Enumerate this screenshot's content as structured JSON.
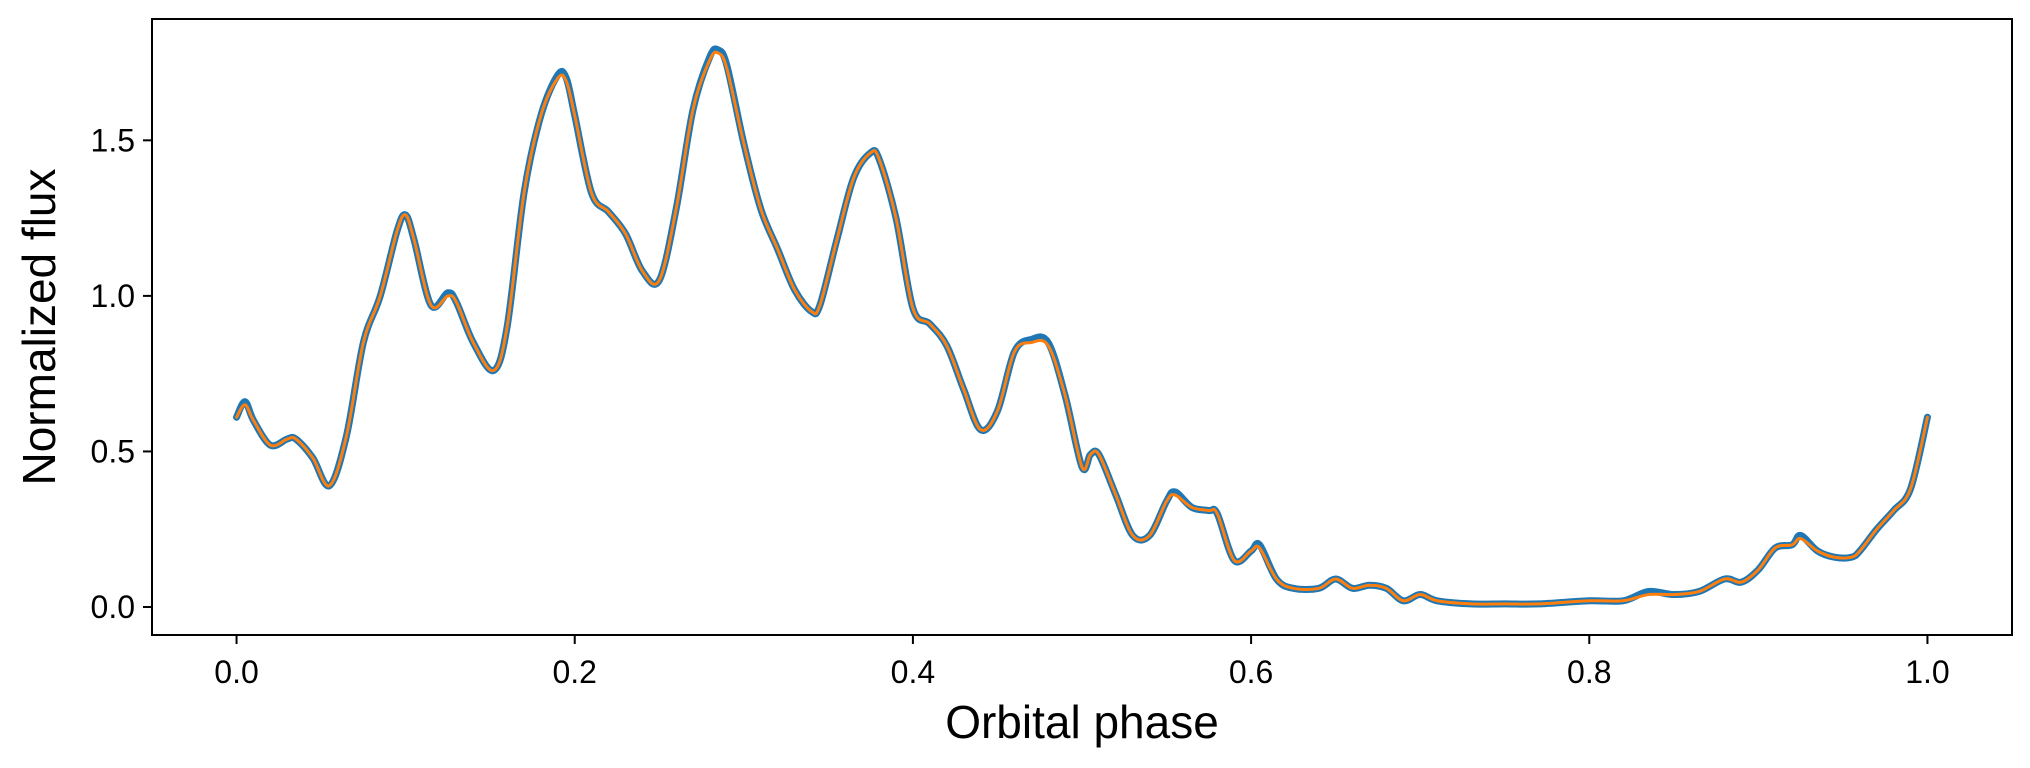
{
  "chart_data": {
    "type": "line",
    "title": "",
    "xlabel": "Orbital phase",
    "ylabel": "Normalized flux",
    "xlim": [
      -0.05,
      1.05
    ],
    "ylim": [
      -0.09,
      1.89
    ],
    "xticks": [
      0.0,
      0.2,
      0.4,
      0.6,
      0.8,
      1.0
    ],
    "xtick_labels": [
      "0.0",
      "0.2",
      "0.4",
      "0.6",
      "0.8",
      "1.0"
    ],
    "yticks": [
      0.0,
      0.5,
      1.0,
      1.5
    ],
    "ytick_labels": [
      "0.0",
      "0.5",
      "1.0",
      "1.5"
    ],
    "grid": false,
    "legend": "none",
    "series": [
      {
        "color": "#1f77b4",
        "role": "observed",
        "x": [
          0.0,
          0.005,
          0.01,
          0.02,
          0.03,
          0.035,
          0.045,
          0.055,
          0.065,
          0.075,
          0.085,
          0.095,
          0.1,
          0.105,
          0.115,
          0.125,
          0.13,
          0.14,
          0.152,
          0.16,
          0.17,
          0.18,
          0.19,
          0.195,
          0.2,
          0.21,
          0.22,
          0.23,
          0.24,
          0.25,
          0.26,
          0.27,
          0.28,
          0.285,
          0.29,
          0.3,
          0.31,
          0.32,
          0.33,
          0.34,
          0.345,
          0.355,
          0.365,
          0.375,
          0.38,
          0.39,
          0.4,
          0.41,
          0.42,
          0.43,
          0.44,
          0.45,
          0.46,
          0.47,
          0.48,
          0.49,
          0.5,
          0.505,
          0.51,
          0.52,
          0.53,
          0.54,
          0.55,
          0.555,
          0.565,
          0.575,
          0.58,
          0.59,
          0.6,
          0.605,
          0.615,
          0.625,
          0.64,
          0.65,
          0.66,
          0.67,
          0.68,
          0.69,
          0.7,
          0.71,
          0.73,
          0.75,
          0.77,
          0.8,
          0.82,
          0.835,
          0.85,
          0.865,
          0.88,
          0.89,
          0.9,
          0.91,
          0.92,
          0.925,
          0.935,
          0.945,
          0.955,
          0.96,
          0.97,
          0.98,
          0.99,
          1.0
        ],
        "y": [
          0.61,
          0.66,
          0.6,
          0.52,
          0.54,
          0.54,
          0.48,
          0.39,
          0.55,
          0.85,
          1.0,
          1.21,
          1.26,
          1.18,
          0.97,
          1.01,
          0.98,
          0.85,
          0.76,
          0.9,
          1.33,
          1.58,
          1.71,
          1.7,
          1.58,
          1.33,
          1.27,
          1.2,
          1.08,
          1.05,
          1.28,
          1.6,
          1.77,
          1.79,
          1.74,
          1.49,
          1.28,
          1.15,
          1.02,
          0.95,
          0.97,
          1.18,
          1.38,
          1.46,
          1.44,
          1.25,
          0.96,
          0.91,
          0.84,
          0.7,
          0.57,
          0.63,
          0.82,
          0.86,
          0.85,
          0.68,
          0.45,
          0.49,
          0.49,
          0.36,
          0.23,
          0.23,
          0.34,
          0.37,
          0.32,
          0.31,
          0.3,
          0.15,
          0.18,
          0.2,
          0.09,
          0.06,
          0.06,
          0.09,
          0.06,
          0.07,
          0.06,
          0.02,
          0.04,
          0.02,
          0.01,
          0.01,
          0.01,
          0.02,
          0.02,
          0.05,
          0.04,
          0.05,
          0.09,
          0.08,
          0.12,
          0.19,
          0.2,
          0.23,
          0.18,
          0.16,
          0.16,
          0.18,
          0.25,
          0.31,
          0.38,
          0.61
        ]
      },
      {
        "color": "#ff7f0e",
        "role": "model",
        "x": [
          0.0,
          0.005,
          0.01,
          0.02,
          0.03,
          0.035,
          0.045,
          0.055,
          0.065,
          0.075,
          0.085,
          0.095,
          0.1,
          0.105,
          0.115,
          0.125,
          0.13,
          0.14,
          0.152,
          0.16,
          0.17,
          0.18,
          0.19,
          0.195,
          0.2,
          0.21,
          0.22,
          0.23,
          0.24,
          0.25,
          0.26,
          0.27,
          0.28,
          0.285,
          0.29,
          0.3,
          0.31,
          0.32,
          0.33,
          0.34,
          0.345,
          0.355,
          0.365,
          0.375,
          0.38,
          0.39,
          0.4,
          0.41,
          0.42,
          0.43,
          0.44,
          0.45,
          0.46,
          0.47,
          0.48,
          0.49,
          0.5,
          0.505,
          0.51,
          0.52,
          0.53,
          0.54,
          0.55,
          0.555,
          0.565,
          0.575,
          0.58,
          0.59,
          0.6,
          0.605,
          0.615,
          0.625,
          0.64,
          0.65,
          0.66,
          0.67,
          0.68,
          0.69,
          0.7,
          0.71,
          0.73,
          0.75,
          0.77,
          0.8,
          0.82,
          0.835,
          0.85,
          0.865,
          0.88,
          0.89,
          0.9,
          0.91,
          0.92,
          0.925,
          0.935,
          0.945,
          0.955,
          0.96,
          0.97,
          0.98,
          0.99,
          1.0
        ],
        "y": [
          0.61,
          0.65,
          0.6,
          0.52,
          0.54,
          0.54,
          0.48,
          0.39,
          0.55,
          0.85,
          1.0,
          1.21,
          1.26,
          1.18,
          0.97,
          1.0,
          0.98,
          0.85,
          0.76,
          0.9,
          1.33,
          1.58,
          1.7,
          1.69,
          1.58,
          1.33,
          1.27,
          1.2,
          1.08,
          1.05,
          1.28,
          1.6,
          1.76,
          1.78,
          1.73,
          1.49,
          1.28,
          1.15,
          1.02,
          0.95,
          0.97,
          1.18,
          1.38,
          1.46,
          1.44,
          1.25,
          0.96,
          0.91,
          0.84,
          0.7,
          0.57,
          0.63,
          0.82,
          0.85,
          0.84,
          0.68,
          0.45,
          0.49,
          0.49,
          0.36,
          0.23,
          0.23,
          0.34,
          0.36,
          0.32,
          0.31,
          0.3,
          0.15,
          0.18,
          0.19,
          0.09,
          0.06,
          0.06,
          0.09,
          0.06,
          0.07,
          0.06,
          0.02,
          0.04,
          0.02,
          0.01,
          0.01,
          0.01,
          0.02,
          0.02,
          0.04,
          0.04,
          0.05,
          0.09,
          0.08,
          0.12,
          0.19,
          0.2,
          0.22,
          0.18,
          0.16,
          0.16,
          0.18,
          0.25,
          0.31,
          0.38,
          0.61
        ]
      }
    ]
  }
}
